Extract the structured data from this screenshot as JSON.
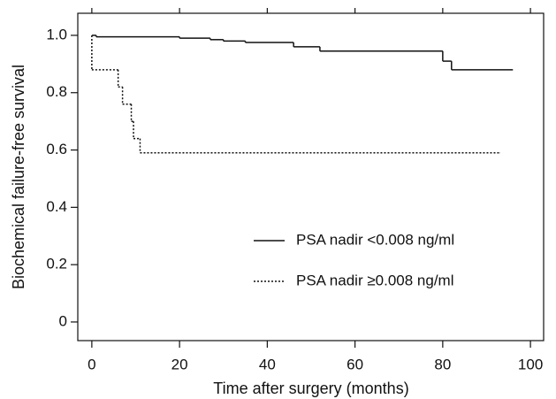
{
  "chart_data": {
    "type": "step",
    "x_label": "Time after surgery (months)",
    "y_label": "Biochemical failure-free survival",
    "xlim": [
      -3.2,
      103
    ],
    "ylim": [
      -0.065,
      1.077
    ],
    "xticks": [
      0,
      20,
      40,
      60,
      80,
      100
    ],
    "yticks": [
      0,
      0.2,
      0.4,
      0.6,
      0.8,
      {
        "value": 1,
        "label": "1.0"
      }
    ],
    "series": [
      {
        "name": "PSA nadir <0.008 ng/ml",
        "color": "#111111",
        "style": "solid",
        "x": [
          0,
          1,
          20,
          27,
          30,
          35,
          46,
          52,
          80,
          82,
          96
        ],
        "values": [
          1.0,
          0.995,
          0.99,
          0.985,
          0.98,
          0.975,
          0.96,
          0.945,
          0.91,
          0.88,
          0.88
        ]
      },
      {
        "name": "PSA nadir ≥0.008 ng/ml",
        "color": "#111111",
        "style": "dotted",
        "x": [
          0,
          6,
          7,
          9,
          9.5,
          11,
          93
        ],
        "values": [
          0.88,
          0.82,
          0.76,
          0.7,
          0.64,
          0.59,
          0.59
        ]
      }
    ]
  }
}
